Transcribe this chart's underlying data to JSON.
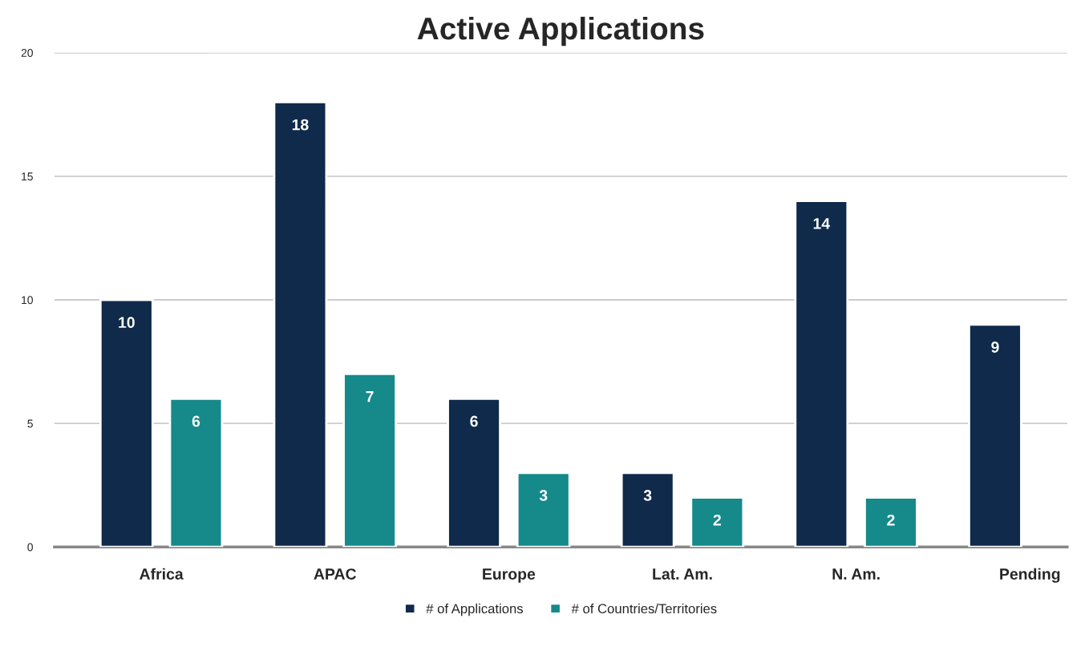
{
  "chart_data": {
    "type": "bar",
    "title": "Active Applications",
    "categories": [
      "Africa",
      "APAC",
      "Europe",
      "Lat. Am.",
      "N. Am.",
      "Pending"
    ],
    "series": [
      {
        "name": "# of Applications",
        "color": "#0f2a4a",
        "values": [
          10,
          18,
          6,
          3,
          14,
          9
        ]
      },
      {
        "name": "# of Countries/Territories",
        "color": "#16898a",
        "values": [
          6,
          7,
          3,
          2,
          2,
          null
        ]
      }
    ],
    "ylim": [
      0,
      20
    ],
    "yticks": [
      0,
      5,
      10,
      15,
      20
    ],
    "grid": "y",
    "legend": "bottom",
    "data_labels": true
  }
}
